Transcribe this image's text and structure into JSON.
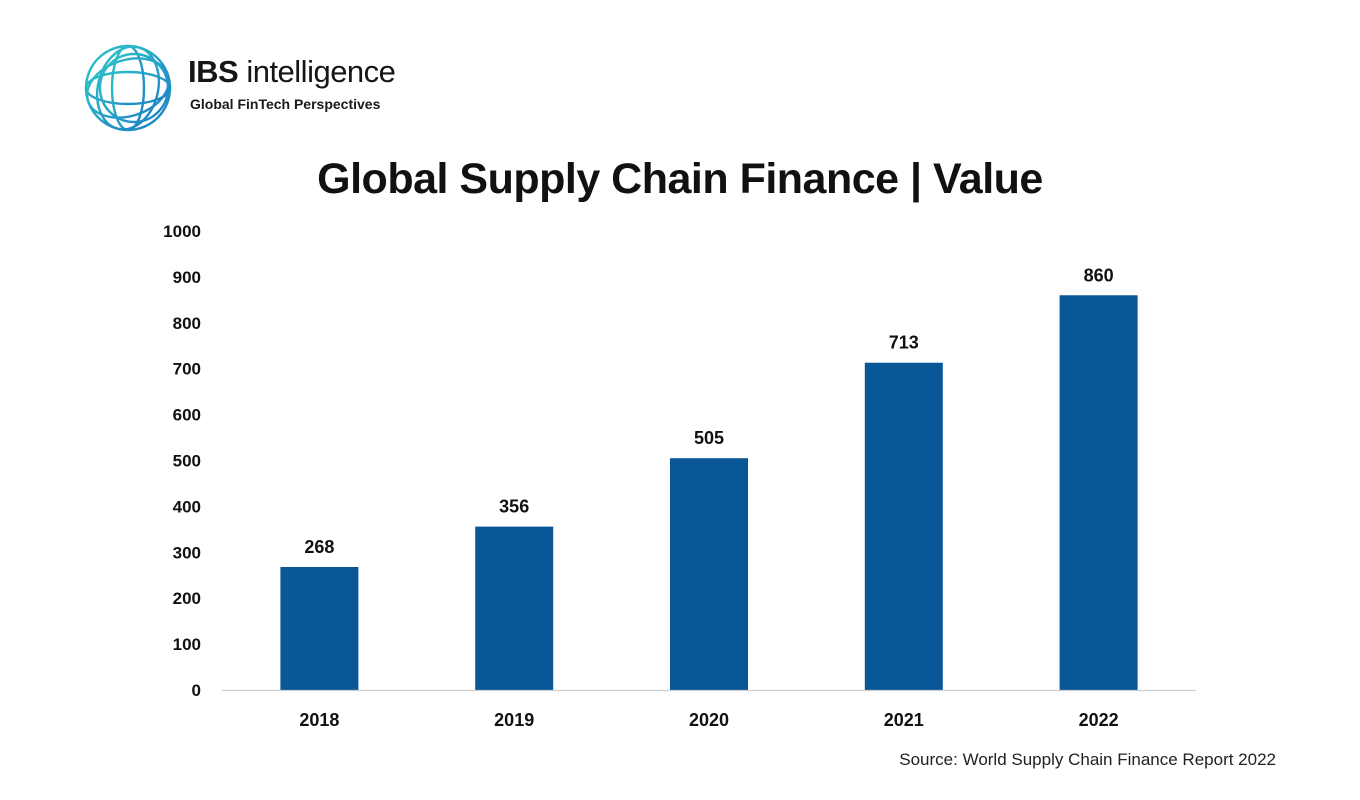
{
  "logo": {
    "brand_strong": "IBS",
    "brand_light": "intelligence",
    "tagline": "Global FinTech Perspectives"
  },
  "chart_data": {
    "type": "bar",
    "title": "Global Supply Chain Finance | Value",
    "categories": [
      "2018",
      "2019",
      "2020",
      "2021",
      "2022"
    ],
    "values": [
      268,
      356,
      505,
      713,
      860
    ],
    "data_labels": [
      "268",
      "356",
      "505",
      "713",
      "860"
    ],
    "y_ticks": [
      0,
      100,
      200,
      300,
      400,
      500,
      600,
      700,
      800,
      900,
      1000
    ],
    "ylim": [
      0,
      1000
    ],
    "xlabel": "",
    "ylabel": "",
    "grid": false,
    "legend": "none",
    "bar_color": "#0a5797"
  },
  "source": "Source: World Supply Chain Finance Report 2022"
}
